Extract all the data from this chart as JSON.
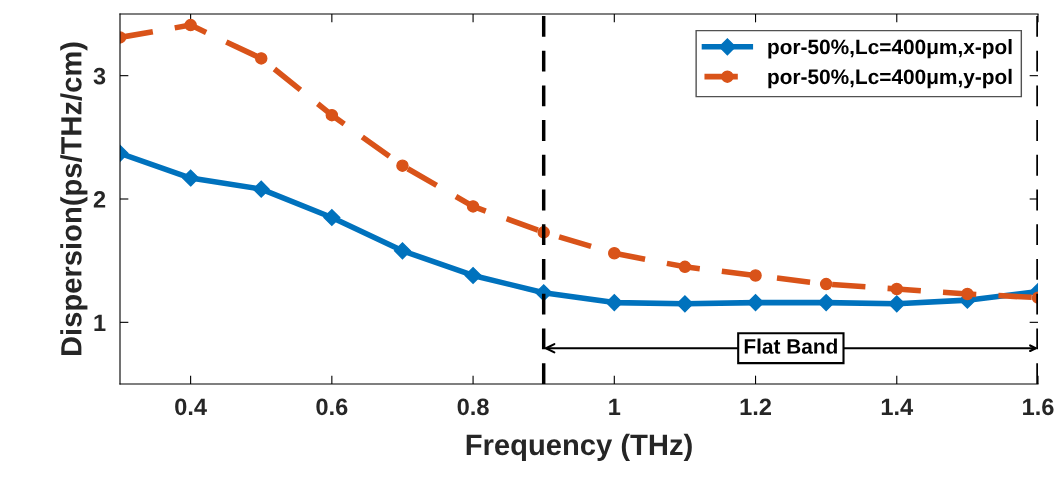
{
  "chart_data": {
    "type": "line",
    "xlabel": "Frequency (THz)",
    "ylabel": "Dispersion(ps/THz/cm)",
    "x": [
      0.3,
      0.4,
      0.5,
      0.6,
      0.7,
      0.8,
      0.9,
      1.0,
      1.1,
      1.2,
      1.3,
      1.4,
      1.5,
      1.6
    ],
    "series": [
      {
        "name": "por-50%,Lc=400μm,x-pol",
        "color": "#0072bd",
        "marker": "diamond",
        "line_style": "solid",
        "values": [
          2.37,
          2.17,
          2.08,
          1.85,
          1.58,
          1.38,
          1.24,
          1.16,
          1.15,
          1.16,
          1.16,
          1.15,
          1.18,
          1.25
        ]
      },
      {
        "name": "por-50%,Lc=400μm,y-pol",
        "color": "#d95319",
        "marker": "circle",
        "line_style": "dashed",
        "values": [
          3.31,
          3.41,
          3.14,
          2.68,
          2.27,
          1.94,
          1.73,
          1.56,
          1.45,
          1.38,
          1.31,
          1.27,
          1.23,
          1.2
        ]
      }
    ],
    "xlim": [
      0.3,
      1.6
    ],
    "xticks": [
      0.4,
      0.6,
      0.8,
      1,
      1.2,
      1.4,
      1.6
    ],
    "ylim": [
      0.5,
      3.5
    ],
    "yticks": [
      1,
      2,
      3
    ],
    "ref_lines": [
      {
        "axis": "x",
        "value": 0.9,
        "color": "#000000",
        "line_style": "dashed"
      },
      {
        "axis": "x",
        "value": 1.6,
        "color": "#000000",
        "line_style": "dashed"
      }
    ],
    "annotations": [
      {
        "text": "Flat Band",
        "x": 0.9,
        "y": 0.79
      }
    ],
    "grid": false,
    "legend": "top right"
  }
}
